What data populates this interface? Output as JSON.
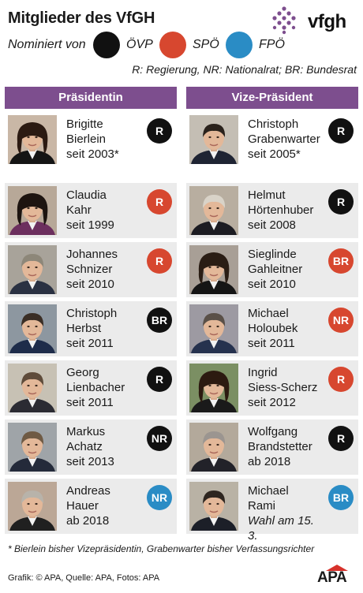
{
  "title": "Mitglieder des VfGH",
  "logo_text": "vfgh",
  "legend": {
    "label": "Nominiert von",
    "items": [
      {
        "name": "ÖVP",
        "color": "#111111"
      },
      {
        "name": "SPÖ",
        "color": "#d7472f"
      },
      {
        "name": "FPÖ",
        "color": "#2a8cc5"
      }
    ]
  },
  "abbreviations": "R: Regierung, NR: Nationalrat; BR: Bundesrat",
  "columns": [
    {
      "header": "Präsidentin",
      "members": [
        {
          "first": "Brigitte",
          "last": "Bierlein",
          "since": "seit 2003*",
          "badge": "R",
          "party": "ÖVP",
          "hair": "#2b1a12",
          "jacket": "#151515",
          "bg": "#c9b7a6"
        },
        {
          "first": "Claudia",
          "last": "Kahr",
          "since": "seit 1999",
          "badge": "R",
          "party": "SPÖ",
          "hair": "#1d1410",
          "jacket": "#6c2f5e",
          "bg": "#b7a898"
        },
        {
          "first": "Johannes",
          "last": "Schnizer",
          "since": "seit 2010",
          "badge": "R",
          "party": "SPÖ",
          "hair": "#8d8779",
          "jacket": "#2a3142",
          "bg": "#a8a39a"
        },
        {
          "first": "Christoph",
          "last": "Herbst",
          "since": "seit 2011",
          "badge": "BR",
          "party": "ÖVP",
          "hair": "#3a2e25",
          "jacket": "#1e2c4a",
          "bg": "#8d97a0"
        },
        {
          "first": "Georg",
          "last": "Lienbacher",
          "since": "seit 2011",
          "badge": "R",
          "party": "ÖVP",
          "hair": "#5e4b3a",
          "jacket": "#2b2b33",
          "bg": "#c7c1b4"
        },
        {
          "first": "Markus",
          "last": "Achatz",
          "since": "seit 2013",
          "badge": "NR",
          "party": "ÖVP",
          "hair": "#6f5a44",
          "jacket": "#242a3a",
          "bg": "#9fa4a8"
        },
        {
          "first": "Andreas",
          "last": "Hauer",
          "since": "ab 2018",
          "badge": "NR",
          "party": "FPÖ",
          "hair": "#b8b3aa",
          "jacket": "#202020",
          "bg": "#bba796"
        }
      ]
    },
    {
      "header": "Vize-Präsident",
      "members": [
        {
          "first": "Christoph",
          "last": "Grabenwarter",
          "since": "seit 2005*",
          "badge": "R",
          "party": "ÖVP",
          "hair": "#2a221c",
          "jacket": "#1f2433",
          "bg": "#c4beb4"
        },
        {
          "first": "Helmut",
          "last": "Hörtenhuber",
          "since": "seit 2008",
          "badge": "R",
          "party": "ÖVP",
          "hair": "#d9d3c8",
          "jacket": "#1c1c22",
          "bg": "#b8aea0"
        },
        {
          "first": "Sieglinde",
          "last": "Gahleitner",
          "since": "seit 2010",
          "badge": "BR",
          "party": "SPÖ",
          "hair": "#2a1d14",
          "jacket": "#151515",
          "bg": "#a89f96"
        },
        {
          "first": "Michael",
          "last": "Holoubek",
          "since": "seit 2011",
          "badge": "NR",
          "party": "SPÖ",
          "hair": "#5a5048",
          "jacket": "#26324e",
          "bg": "#9d9aa2"
        },
        {
          "first": "Ingrid",
          "last": "Siess-Scherz",
          "since": "seit 2012",
          "badge": "R",
          "party": "SPÖ",
          "hair": "#2c1a10",
          "jacket": "#1a1a1a",
          "bg": "#7b8f63"
        },
        {
          "first": "Wolfgang",
          "last": "Brandstetter",
          "since": "ab 2018",
          "badge": "R",
          "party": "ÖVP",
          "hair": "#9b9590",
          "jacket": "#222229",
          "bg": "#b3a99b"
        },
        {
          "first": "Michael",
          "last": "Rami",
          "since": "Wahl am 15. 3.",
          "badge": "BR",
          "party": "FPÖ",
          "hair": "#2e2620",
          "jacket": "#1c1f28",
          "bg": "#b9b2a5"
        }
      ]
    }
  ],
  "footnote": "* Bierlein bisher Vizepräsidentin, Grabenwarter bisher Verfassungsrichter",
  "credits": "Grafik: © APA, Quelle: APA, Fotos: APA",
  "apa_logo": "APA"
}
